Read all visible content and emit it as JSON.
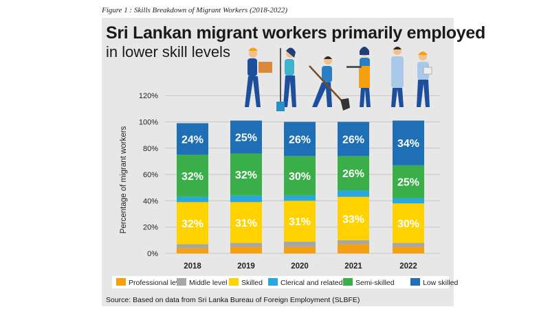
{
  "figure_caption": "Figure 1 : Skills Breakdown of Migrant Workers (2018-2022)",
  "source": "Source: Based on data from Sri Lanka Bureau of Foreign Employment (SLBFE)",
  "colors": {
    "panel": "#e7e7e7",
    "Professional level": "#f5a10f",
    "Middle level": "#a7a7a7",
    "Skilled": "#ffd200",
    "Clerical and related": "#29a8e0",
    "Semi-skilled": "#3aae49",
    "Low skilled": "#1e6fb6"
  },
  "chart_data": {
    "type": "bar",
    "stacked": true,
    "title": "Sri Lankan migrant workers primarily employed",
    "subtitle": "in lower skill levels",
    "ylabel": "Percentage of migrant workers",
    "xlabel": "",
    "ylim": [
      0,
      120
    ],
    "yticks": [
      "0%",
      "20%",
      "40%",
      "60%",
      "80%",
      "100%",
      "120%"
    ],
    "grid": true,
    "legend": "bottom",
    "categories": [
      "2018",
      "2019",
      "2020",
      "2021",
      "2022"
    ],
    "series": [
      {
        "name": "Professional level",
        "values": [
          4,
          5,
          5,
          7,
          5
        ]
      },
      {
        "name": "Middle level",
        "values": [
          3,
          3,
          4,
          3,
          3
        ]
      },
      {
        "name": "Skilled",
        "values": [
          32,
          31,
          31,
          33,
          30
        ]
      },
      {
        "name": "Clerical and related",
        "values": [
          4,
          5,
          4,
          5,
          4
        ]
      },
      {
        "name": "Semi-skilled",
        "values": [
          32,
          32,
          30,
          26,
          25
        ]
      },
      {
        "name": "Low skilled",
        "values": [
          24,
          25,
          26,
          26,
          34
        ]
      }
    ],
    "data_labels": {
      "Skilled": [
        "32%",
        "31%",
        "31%",
        "33%",
        "30%"
      ],
      "Semi-skilled": [
        "32%",
        "32%",
        "30%",
        "26%",
        "25%"
      ],
      "Low skilled": [
        "24%",
        "25%",
        "26%",
        "26%",
        "34%"
      ]
    }
  }
}
